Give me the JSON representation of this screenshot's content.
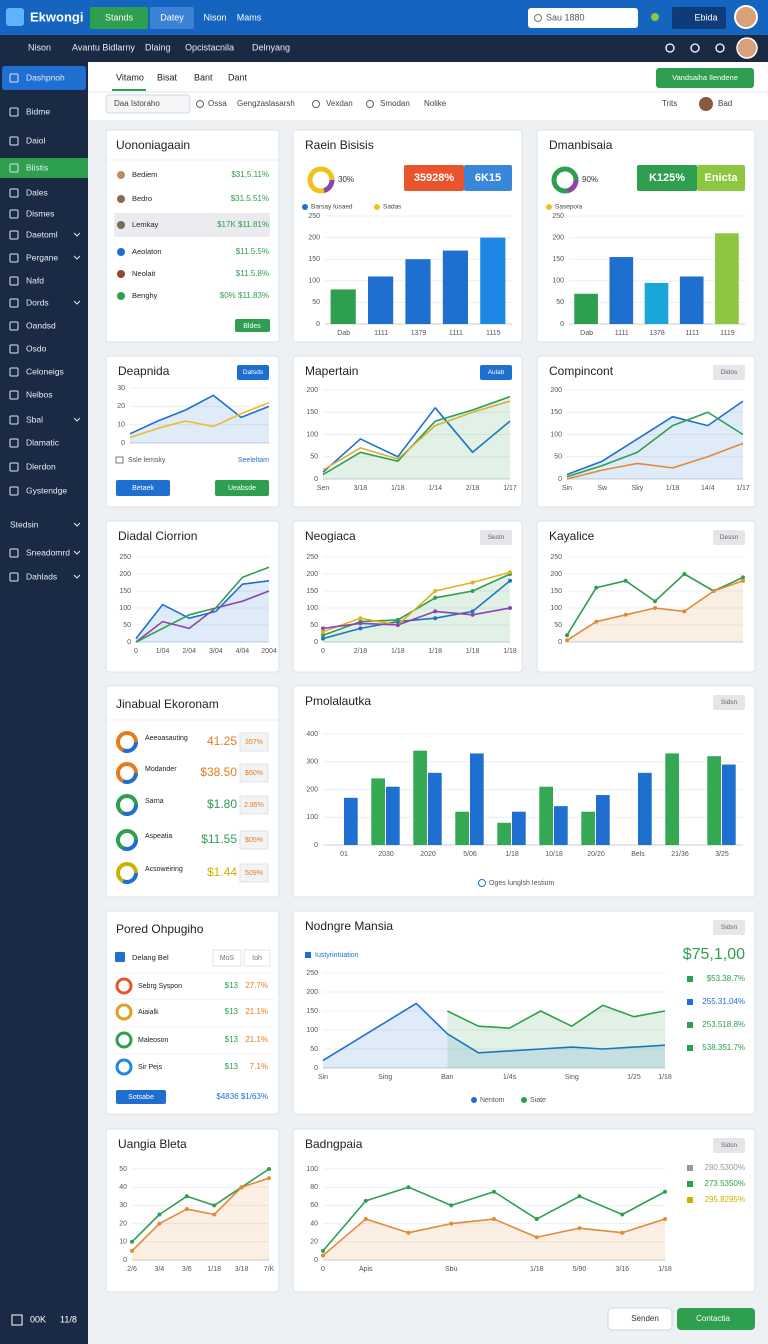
{
  "header": {
    "brand": "Ekwongi",
    "tabs": [
      "Stands",
      "Datey",
      "Nison",
      "Mams"
    ],
    "search": "Sau 1880",
    "badge": "Ebida"
  },
  "nav": {
    "items": [
      "Nison",
      "Avantu Bidlarny",
      "Dlaing",
      "Opcistacnila",
      "Delnyang"
    ]
  },
  "sidebar": {
    "items": [
      "Dashpnoh",
      "Bidme",
      "Daiol",
      "Blistis",
      "Dales",
      "Dismes",
      "Daetoml",
      "Pergane",
      "Nafd",
      "Dords",
      "Oandsd",
      "Osdo",
      "Celoneigs",
      "Nelbos",
      "Sbal",
      "Dlamatic",
      "Dlerdon",
      "Gystendge",
      "Stedsin",
      "Sneadomrd",
      "Dahlads"
    ],
    "footer": [
      "00K",
      "11/8"
    ]
  },
  "toolbar": {
    "tabs": [
      "Vitamo",
      "Bisat",
      "Bant",
      "Dant"
    ],
    "action": "Vandsaiha Ilendene",
    "filters": [
      "Daa Istoraho",
      "Ossa",
      "Gengzaslasarsh",
      "Vexdan",
      "Smodan",
      "Nolike"
    ],
    "right": [
      "Trits",
      "Bad"
    ]
  },
  "lists": [
    {
      "title": "Uononiagaain",
      "rows": [
        {
          "name": "Bediem",
          "value": "$31,5.11%"
        },
        {
          "name": "Bedro",
          "value": "$31.5.51%"
        },
        {
          "name": "Lemkay",
          "value": "$17K $11.81%"
        },
        {
          "name": "Aeolaton",
          "value": "$11.5.5%"
        },
        {
          "name": "Neolait",
          "value": "$11.5.8%"
        },
        {
          "name": "Benghy",
          "value": "$0% $11.83%"
        }
      ],
      "button": "Bldes"
    },
    {
      "title": "Jinabual Ekoronam",
      "rows": [
        {
          "name": "Aeeoasauting",
          "value": "41.25",
          "pct": "357%"
        },
        {
          "name": "Modander",
          "value": "$38.50",
          "pct": "$60%"
        },
        {
          "name": "Sarna",
          "value": "$1.80",
          "pct": "2.95%"
        },
        {
          "name": "Aspeatia",
          "value": "$11.55",
          "pct": "$05%"
        },
        {
          "name": "Acsoweiring",
          "value": "$1.44",
          "pct": "509%"
        }
      ]
    },
    {
      "title": "Pored Ohpugiho",
      "header": [
        "Delang Bel",
        "MoS",
        "Ioh"
      ],
      "rows": [
        {
          "name": "Sebrg Syspon",
          "value": "$13",
          "pct": "27.7%"
        },
        {
          "name": "Aiaialk",
          "value": "$13",
          "pct": "21.1%"
        },
        {
          "name": "Maleoson",
          "value": "$13",
          "pct": "21.1%"
        },
        {
          "name": "Sir Pejs",
          "value": "$13",
          "pct": "7.1%"
        }
      ],
      "button": "Sotsabe",
      "note": "$4836 $1/63%"
    }
  ],
  "chart_data": [
    {
      "type": "bar",
      "title": "Raein Bisisis",
      "donut_label": "30%",
      "donut_color": "#f2c11a",
      "kpis": [
        "35928%",
        "6K15"
      ],
      "kpi_colors": [
        "#e8542c",
        "#3a86d8"
      ],
      "legend": [
        {
          "name": "Barsay Iusaed",
          "color": "#1e6fd0"
        },
        {
          "name": "Sadas",
          "color": "#f2c11a"
        }
      ],
      "categories": [
        "Dab",
        "1111",
        "1379",
        "1111",
        "1115"
      ],
      "ylim": [
        0,
        250
      ],
      "yticks": [
        0,
        50,
        100,
        150,
        200,
        250
      ],
      "grid": true,
      "series": [
        {
          "colors": [
            "#2e9e4f",
            "#1e6fd0",
            "#1e6fd0",
            "#1e6fd0",
            "#1e88e5"
          ],
          "values": [
            80,
            110,
            150,
            170,
            200
          ]
        }
      ]
    },
    {
      "type": "bar",
      "title": "Dmanbisaia",
      "donut_label": "90%",
      "donut_color": "#2e9e4f",
      "kpis": [
        "K125%",
        "Enicta"
      ],
      "kpi_colors": [
        "#2e9e4f",
        "#8dc63f"
      ],
      "legend": [
        {
          "name": "Sasepoia",
          "color": "#f2c11a"
        }
      ],
      "categories": [
        "Dab",
        "1111",
        "1378",
        "1111",
        "1119"
      ],
      "ylim": [
        0,
        250
      ],
      "yticks": [
        0,
        50,
        100,
        150,
        200,
        250
      ],
      "grid": true,
      "series": [
        {
          "colors": [
            "#2e9e4f",
            "#1e6fd0",
            "#1aa6d8",
            "#1e6fd0",
            "#8dc63f"
          ],
          "values": [
            70,
            155,
            95,
            110,
            210
          ]
        }
      ]
    },
    {
      "type": "line",
      "title": "Deapnida",
      "badge": "Datsds",
      "badge_color": "#1e6fd0",
      "notes": [
        "Ssle lemsky",
        "Seeleltam"
      ],
      "buttons": [
        "Betaek",
        "Ueabsde"
      ],
      "categories": [
        null,
        null,
        null,
        null,
        null,
        null
      ],
      "ylim": [
        0,
        30
      ],
      "yticks": [
        0,
        10,
        20,
        30
      ],
      "grid": true,
      "series": [
        {
          "color": "#1e6fd0",
          "area": true,
          "values": [
            5,
            12,
            18,
            26,
            14,
            20
          ]
        },
        {
          "color": "#f2b92a",
          "values": [
            3,
            8,
            12,
            9,
            16,
            22
          ]
        }
      ]
    },
    {
      "type": "line",
      "title": "Mapertain",
      "badge": "Aulab",
      "badge_color": "#1e6fd0",
      "categories": [
        "Sen",
        "3/18",
        "1/18",
        "1/14",
        "2/18",
        "1/17"
      ],
      "ylim": [
        0,
        200
      ],
      "yticks": [
        0,
        50,
        100,
        150,
        200
      ],
      "grid": true,
      "series": [
        {
          "color": "#1e6fd0",
          "values": [
            15,
            90,
            50,
            160,
            60,
            130
          ]
        },
        {
          "color": "#2e9e4f",
          "area": true,
          "values": [
            10,
            60,
            40,
            130,
            155,
            185
          ]
        },
        {
          "color": "#d4b13a",
          "values": [
            20,
            70,
            45,
            120,
            150,
            175
          ]
        }
      ]
    },
    {
      "type": "line",
      "title": "Compincont",
      "badge": "Didos",
      "badge_color": "#e4e6e9",
      "categories": [
        "Sin",
        "Sw",
        "Sky",
        "1/18",
        "14/4",
        "1/17"
      ],
      "ylim": [
        0,
        200
      ],
      "yticks": [
        0,
        50,
        100,
        150,
        200
      ],
      "grid": true,
      "series": [
        {
          "color": "#1e6fd0",
          "area": true,
          "values": [
            10,
            40,
            90,
            140,
            120,
            175
          ]
        },
        {
          "color": "#2e9e4f",
          "values": [
            5,
            30,
            60,
            120,
            150,
            100
          ]
        },
        {
          "color": "#e08a3a",
          "values": [
            0,
            20,
            35,
            25,
            50,
            80
          ]
        }
      ]
    },
    {
      "type": "line",
      "title": "Diadal Ciorrion",
      "categories": [
        "0",
        "1/04",
        "2/04",
        "3/04",
        "4/04",
        "2004"
      ],
      "ylim": [
        0,
        250
      ],
      "yticks": [
        0,
        50,
        100,
        150,
        200,
        250
      ],
      "grid": true,
      "series": [
        {
          "color": "#1e6fd0",
          "area": true,
          "values": [
            10,
            110,
            70,
            90,
            170,
            180
          ]
        },
        {
          "color": "#8e44ad",
          "values": [
            0,
            60,
            40,
            100,
            120,
            150
          ]
        },
        {
          "color": "#2e9e4f",
          "values": [
            0,
            40,
            80,
            100,
            190,
            220
          ]
        }
      ]
    },
    {
      "type": "line",
      "title": "Neogiaca",
      "badge": "Sestn",
      "badge_color": "#e4e6e9",
      "categories": [
        "0",
        "2/18",
        "1/18",
        "1/18",
        "1/18",
        "1/18"
      ],
      "ylim": [
        0,
        250
      ],
      "yticks": [
        0,
        50,
        100,
        150,
        200,
        250
      ],
      "grid": true,
      "markers": true,
      "series": [
        {
          "color": "#1e6fd0",
          "values": [
            10,
            40,
            60,
            70,
            90,
            180
          ]
        },
        {
          "color": "#2e9e4f",
          "area": true,
          "values": [
            20,
            60,
            65,
            130,
            150,
            200
          ]
        },
        {
          "color": "#e0b21f",
          "values": [
            30,
            70,
            50,
            150,
            175,
            205
          ]
        },
        {
          "color": "#8e44ad",
          "values": [
            40,
            55,
            50,
            90,
            80,
            100
          ]
        }
      ]
    },
    {
      "type": "line",
      "title": "Kayalice",
      "badge": "Dessn",
      "badge_color": "#e4e6e9",
      "categories": [
        null,
        null,
        null,
        null,
        null,
        null,
        null
      ],
      "ylim": [
        0,
        250
      ],
      "yticks": [
        0,
        50,
        100,
        150,
        200,
        250
      ],
      "grid": true,
      "markers": true,
      "series": [
        {
          "color": "#2e9e4f",
          "values": [
            20,
            160,
            180,
            120,
            200,
            150,
            190
          ]
        },
        {
          "color": "#e08a3a",
          "area": true,
          "values": [
            5,
            60,
            80,
            100,
            90,
            150,
            180
          ]
        }
      ]
    },
    {
      "type": "bar",
      "title": "Pmolalautka",
      "badge": "Sidsn",
      "badge_color": "#e4e6e9",
      "legend_text": "Oges lunglsh Iestium",
      "categories": [
        "01",
        "2030",
        "2020",
        "5/06",
        "1/18",
        "10/18",
        "20/20",
        "Bels",
        "21/36",
        "3/25"
      ],
      "ylim": [
        0,
        400
      ],
      "yticks": [
        0,
        100,
        200,
        300,
        400
      ],
      "grid": true,
      "series": [
        {
          "color": "#34a853",
          "values": [
            0,
            240,
            340,
            120,
            80,
            210,
            120,
            0,
            330,
            320
          ]
        },
        {
          "color": "#1e6fd0",
          "values": [
            170,
            210,
            260,
            330,
            120,
            140,
            180,
            260,
            0,
            290
          ]
        }
      ]
    },
    {
      "type": "line",
      "title": "Nodngre Mansia",
      "badge": "Sidsn",
      "badge_color": "#e4e6e9",
      "sub_legend": "Iustyrintuation",
      "big_value": "$75,1,00",
      "side_list": [
        "$53.38.7%",
        "255.31.04%",
        "253.518.8%",
        "538.351.7%"
      ],
      "side_colors": [
        "#2e9e4f",
        "#1e6fd0",
        "#2e9e4f",
        "#2e9e4f"
      ],
      "categories": [
        "Sin",
        null,
        "Sing",
        null,
        "Ban",
        null,
        "1/4s",
        null,
        "Sing",
        null,
        "1/25",
        "1/18"
      ],
      "ylim": [
        0,
        250
      ],
      "yticks": [
        0,
        50,
        100,
        150,
        200,
        250
      ],
      "grid": true,
      "series": [
        {
          "name": "Nentom",
          "color": "#1e6fd0",
          "area": true,
          "values": [
            20,
            70,
            120,
            170,
            90,
            40,
            45,
            50,
            55,
            50,
            55,
            60
          ]
        },
        {
          "name": "Siate",
          "color": "#2e9e4f",
          "area": true,
          "values": [
            null,
            null,
            null,
            null,
            150,
            110,
            105,
            150,
            110,
            165,
            135,
            150
          ]
        }
      ]
    },
    {
      "type": "line",
      "title": "Uangia Bleta",
      "categories": [
        "2/6",
        "3/4",
        "3/6",
        "1/18",
        "3/18",
        "7/K"
      ],
      "ylim": [
        0,
        50
      ],
      "yticks": [
        0,
        10,
        20,
        30,
        40,
        50
      ],
      "grid": true,
      "markers": true,
      "series": [
        {
          "color": "#2e9e4f",
          "values": [
            10,
            25,
            35,
            30,
            40,
            50
          ]
        },
        {
          "color": "#e08a3a",
          "area": true,
          "values": [
            5,
            20,
            28,
            25,
            40,
            45
          ]
        }
      ]
    },
    {
      "type": "line",
      "title": "Badngpaia",
      "badge": "Sidsn",
      "badge_color": "#e4e6e9",
      "side_list": [
        "280.5300%",
        "273.5350%",
        "295.8295%"
      ],
      "side_colors": [
        "#999999",
        "#2e9e4f",
        "#c8b400"
      ],
      "categories": [
        "0",
        "Apis",
        null,
        "Sbu",
        null,
        "1/18",
        "5/90",
        "3/16",
        "1/18"
      ],
      "ylim": [
        0,
        100
      ],
      "yticks": [
        0,
        20,
        40,
        60,
        80,
        100
      ],
      "grid": true,
      "markers": true,
      "series": [
        {
          "color": "#2e9e4f",
          "values": [
            10,
            65,
            80,
            60,
            75,
            45,
            70,
            50,
            75
          ]
        },
        {
          "color": "#e08a3a",
          "area": true,
          "values": [
            5,
            45,
            30,
            40,
            45,
            25,
            35,
            30,
            45
          ]
        }
      ]
    }
  ],
  "footer_buttons": [
    "Senden",
    "Contactia"
  ]
}
